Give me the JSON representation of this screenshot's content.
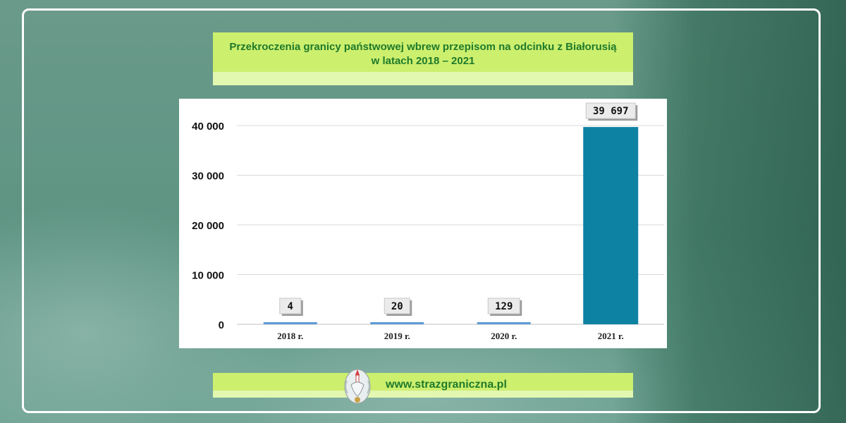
{
  "title": {
    "line1": "Przekroczenia granicy państwowej wbrew przepisom  na odcinku z Białorusią",
    "line2": "w latach 2018 – 2021"
  },
  "footer": {
    "url": "www.strazgraniczna.pl",
    "emblem": "border-guard-emblem-icon"
  },
  "colors": {
    "title_bg": "#ccef6e",
    "title_text": "#1f7a2a",
    "bar_small": "#5b9bd5",
    "bar_large": "#0e82a3"
  },
  "chart_data": {
    "type": "bar",
    "categories": [
      "2018 r.",
      "2019 r.",
      "2020 r.",
      "2021 r."
    ],
    "values": [
      4,
      20,
      129,
      39697
    ],
    "data_labels": [
      "4",
      "20",
      "129",
      "39 697"
    ],
    "bar_colors": [
      "#5b9bd5",
      "#5b9bd5",
      "#5b9bd5",
      "#0e82a3"
    ],
    "yticks": [
      0,
      10000,
      20000,
      30000,
      40000
    ],
    "ytick_labels": [
      "0",
      "10 000",
      "20 000",
      "30 000",
      "40 000"
    ],
    "ylim": [
      0,
      40000
    ],
    "grid": true,
    "title": "",
    "xlabel": "",
    "ylabel": ""
  }
}
